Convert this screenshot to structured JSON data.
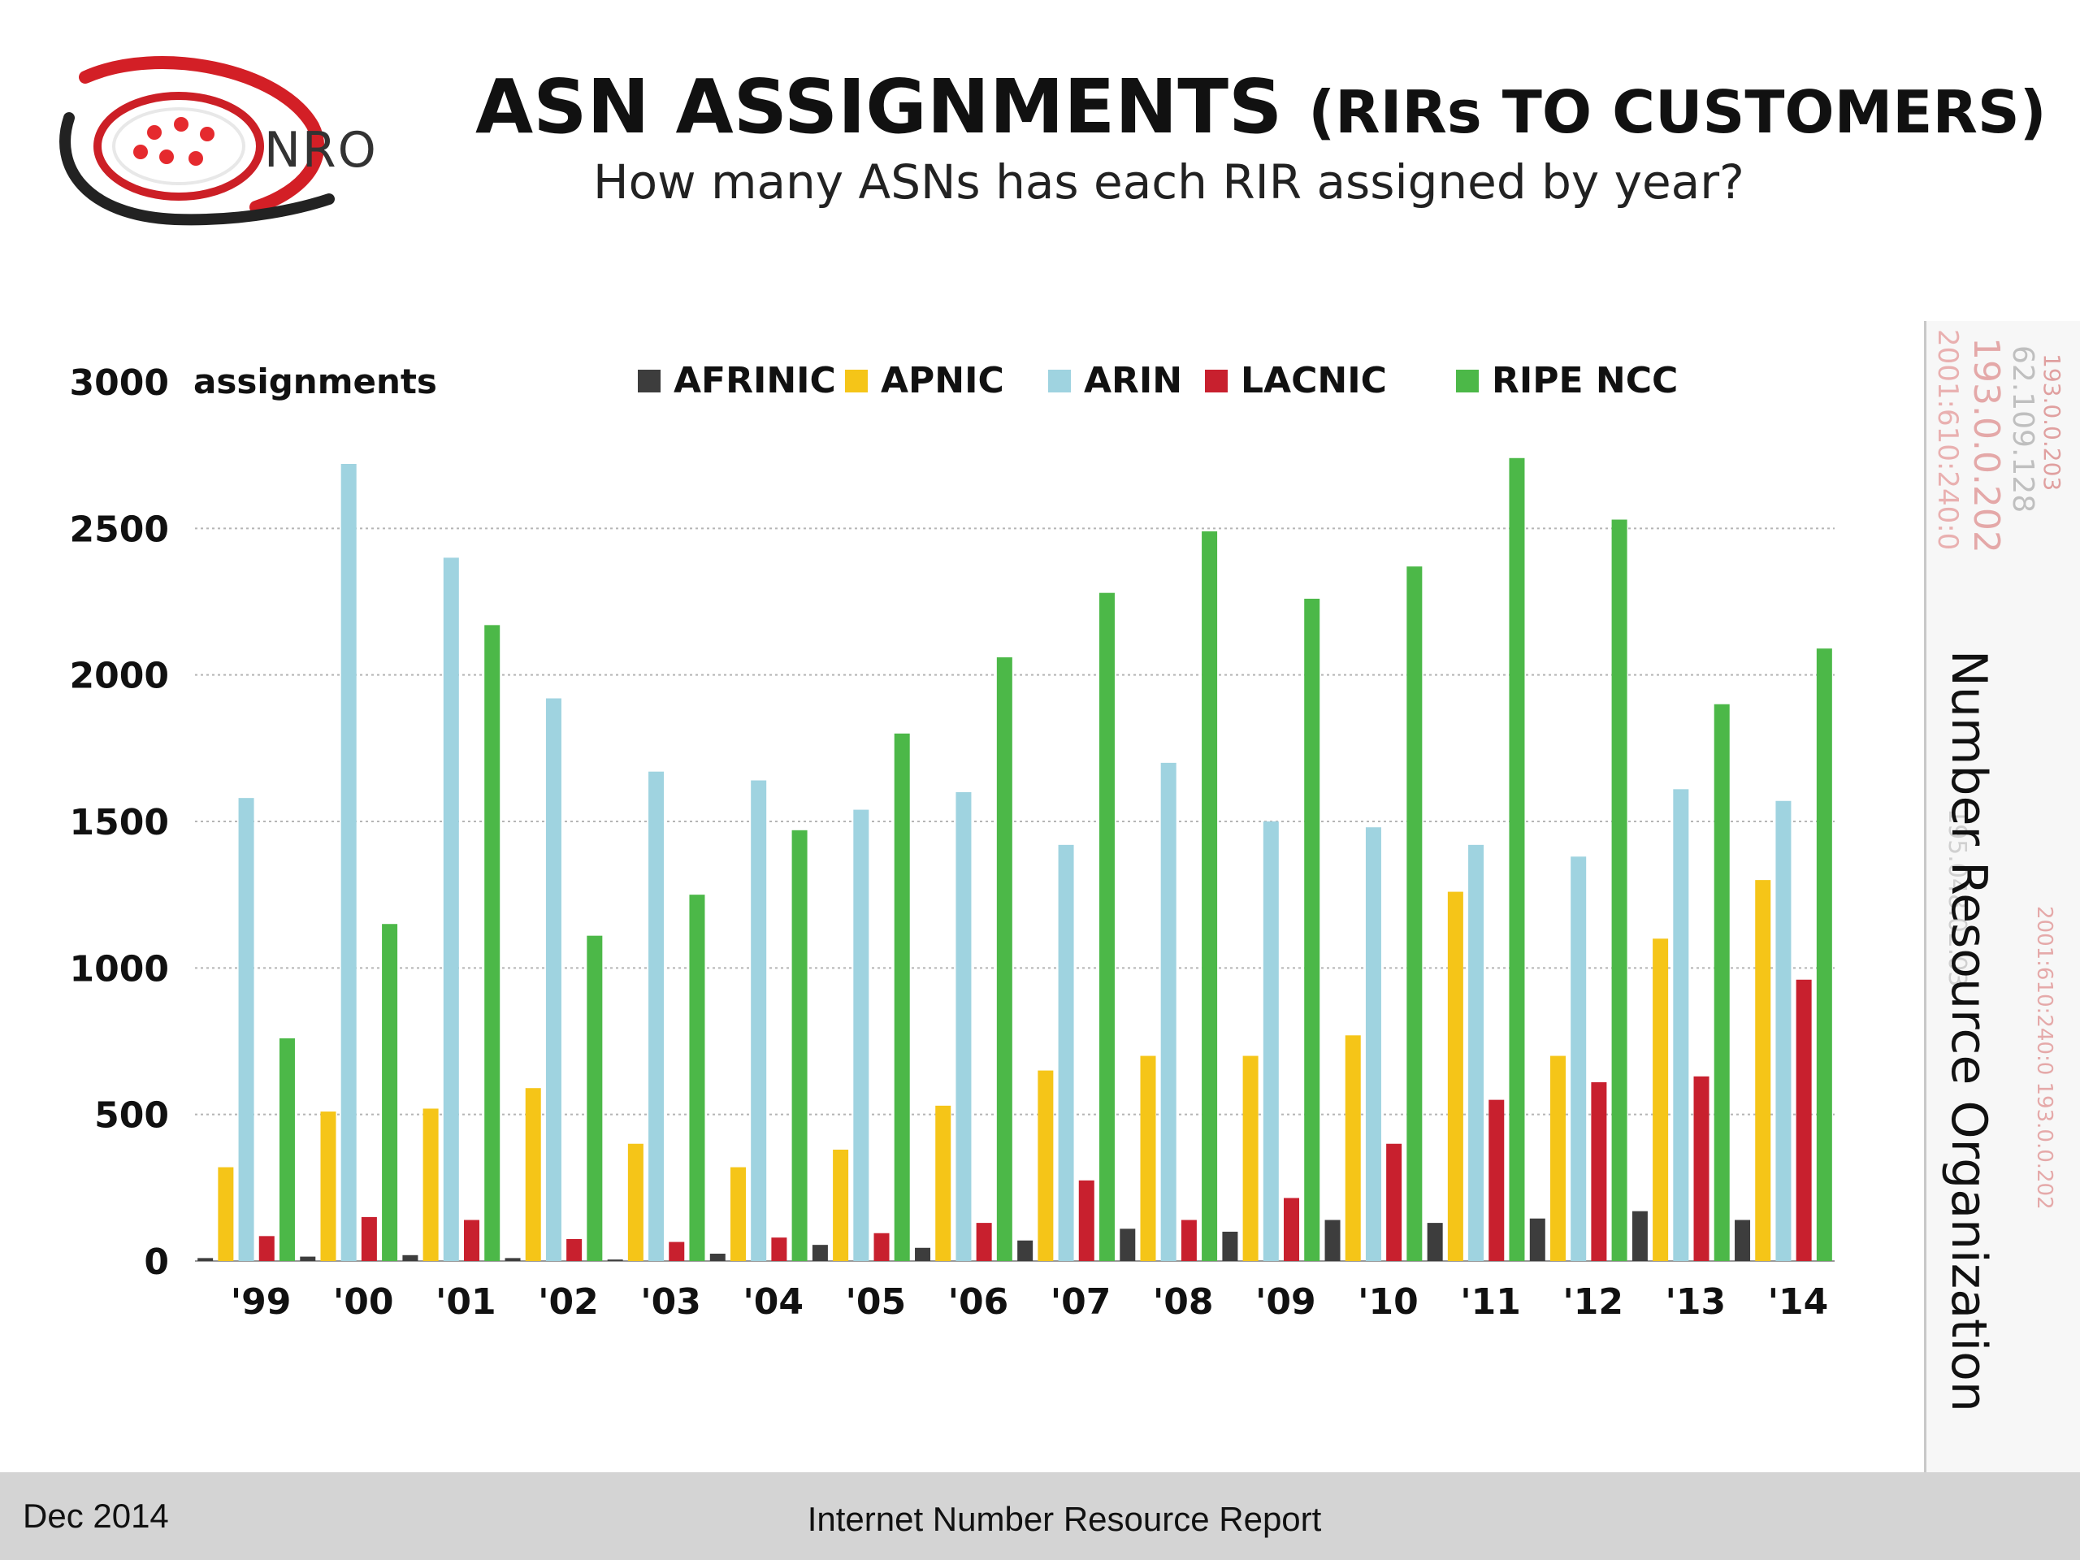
{
  "header": {
    "logo_text": "NRO",
    "title_main": "ASN ASSIGNMENTS",
    "title_paren": "(RIRs TO CUSTOMERS)",
    "subtitle": "How many ASNs has each RIR assigned by year?"
  },
  "side": {
    "org_name": "Number Resource Organization",
    "decor_strings": [
      "2001:610:240:0",
      "193.0.0.202",
      "62.109.128",
      "193.0.0.203",
      "195.048.02.03",
      "2001:610:240:0 193.0.0.202"
    ]
  },
  "footer": {
    "date": "Dec 2014",
    "report": "Internet Number Resource Report"
  },
  "chart_data": {
    "type": "bar",
    "title": "ASN ASSIGNMENTS (RIRs TO CUSTOMERS)",
    "subtitle": "How many ASNs has each RIR assigned by year?",
    "xlabel": "",
    "ylabel": "assignments",
    "ylim": [
      0,
      3000
    ],
    "yticks": [
      0,
      500,
      1000,
      1500,
      2000,
      2500,
      3000
    ],
    "grid": true,
    "legend_position": "top",
    "categories": [
      "'99",
      "'00",
      "'01",
      "'02",
      "'03",
      "'04",
      "'05",
      "'06",
      "'07",
      "'08",
      "'09",
      "'10",
      "'11",
      "'12",
      "'13",
      "'14"
    ],
    "series": [
      {
        "name": "AFRINIC",
        "color": "#3d3d3d",
        "values": [
          10,
          15,
          20,
          10,
          5,
          25,
          55,
          45,
          70,
          110,
          100,
          140,
          130,
          145,
          170,
          140
        ]
      },
      {
        "name": "APNIC",
        "color": "#f5c518",
        "values": [
          320,
          510,
          520,
          590,
          400,
          320,
          380,
          530,
          650,
          700,
          700,
          770,
          1260,
          700,
          1100,
          1300
        ]
      },
      {
        "name": "ARIN",
        "color": "#9fd3e0",
        "values": [
          1580,
          2720,
          2400,
          1920,
          1670,
          1640,
          1540,
          1600,
          1420,
          1700,
          1500,
          1480,
          1420,
          1380,
          1610,
          1570
        ]
      },
      {
        "name": "LACNIC",
        "color": "#c8202e",
        "values": [
          85,
          150,
          140,
          75,
          65,
          80,
          95,
          130,
          275,
          140,
          215,
          400,
          550,
          610,
          630,
          960
        ]
      },
      {
        "name": "RIPE NCC",
        "color": "#4cb848",
        "values": [
          760,
          1150,
          2170,
          1110,
          1250,
          1470,
          1800,
          2060,
          2280,
          2490,
          2260,
          2370,
          2740,
          2530,
          1900,
          2090
        ]
      }
    ]
  }
}
